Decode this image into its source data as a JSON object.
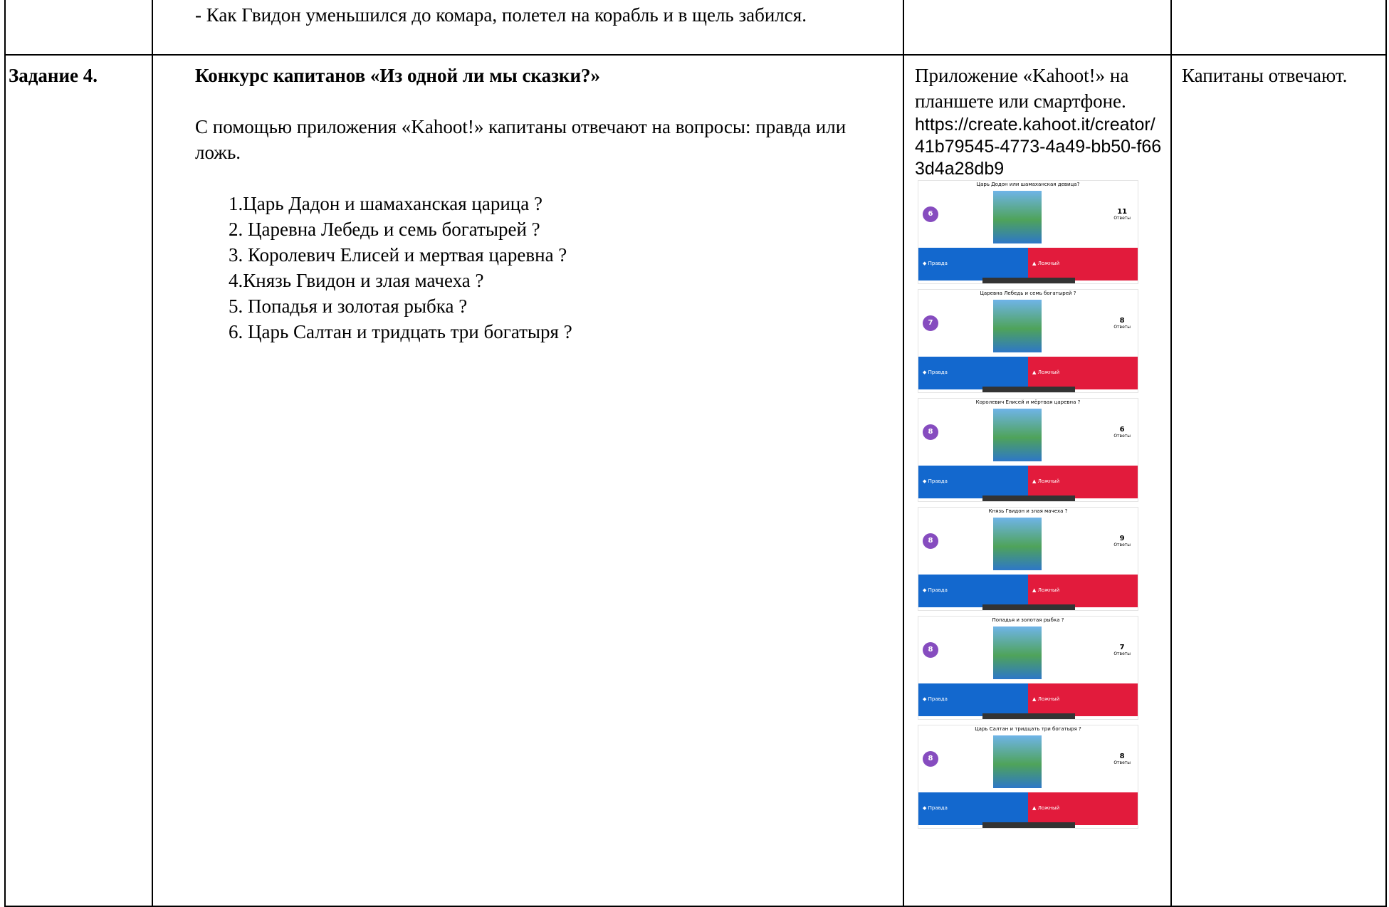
{
  "rows": [
    {
      "content": "- Как Гвидон уменьшился до комара, полетел на корабль и в щель забился."
    },
    {
      "label": "Задание 4.",
      "heading": "Конкурс капитанов «Из одной ли мы сказки?»",
      "paragraph": "С помощью приложения «Kahoot!» капитаны отвечают на вопросы: правда или ложь.",
      "items": [
        "1.Царь Дадон и шамаханская царица ?",
        "2. Царевна Лебедь и семь богатырей ?",
        "3. Королевич Елисей и мертвая царевна ?",
        "4.Князь Гвидон и злая мачеха ?",
        "5. Попадья и золотая рыбка ?",
        "6. Царь Салтан и тридцать три богатыря ?"
      ],
      "resource": "Приложение «Kahoot!» на планшете или смартфоне.",
      "url": "https://create.kahoot.it/creator/41b79545-4773-4a49-bb50-f663d4a28db9",
      "screens": [
        {
          "question": "Царь Додон или шамаханская девица?",
          "number": 6,
          "answers": 11
        },
        {
          "question": "Царевна Лебедь и семь богатырей ?",
          "number": 7,
          "answers": 8
        },
        {
          "question": "Королевич Елисей и мёртвая царевна ?",
          "number": 8,
          "answers": 6
        },
        {
          "question": "Князь Гвидон и злая мачеха ?",
          "number": 8,
          "answers": 9
        },
        {
          "question": "Попадья и золотая рыбка ?",
          "number": 8,
          "answers": 7
        },
        {
          "question": "Царь Салтан и тридцать три богатыря ?",
          "number": 8,
          "answers": 8
        }
      ],
      "answers_label": "Ответы",
      "true_label": "◆ Правда",
      "false_label": "▲ Ложный",
      "result": "Капитаны отвечают."
    }
  ]
}
